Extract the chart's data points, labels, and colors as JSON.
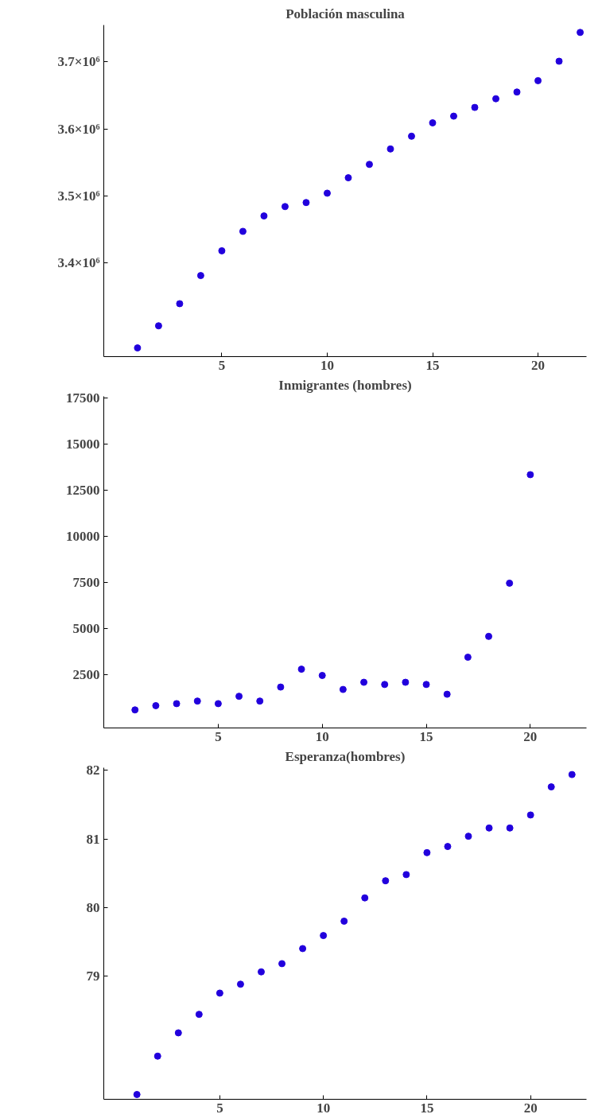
{
  "chart_data": [
    {
      "type": "scatter",
      "title": "Población masculina",
      "marker": "circle",
      "grid": false,
      "x": [
        1,
        2,
        3,
        4,
        5,
        6,
        7,
        8,
        9,
        10,
        11,
        12,
        13,
        14,
        15,
        16,
        17,
        18,
        19,
        20,
        21,
        22
      ],
      "series": [
        {
          "color": "#2200dd",
          "values": [
            3273000,
            3306000,
            3339000,
            3381000,
            3418000,
            3447000,
            3470000,
            3484000,
            3490000,
            3504000,
            3527000,
            3547000,
            3570000,
            3589000,
            3609000,
            3619000,
            3632000,
            3645000,
            3655000,
            3672000,
            3701000,
            3744000
          ]
        }
      ],
      "xlim": [
        -0.6,
        22.3
      ],
      "ylim": [
        3260000,
        3755000
      ],
      "xticks": [
        5,
        10,
        15,
        20
      ],
      "yticks": [
        {
          "value": 3400000,
          "label": "3.4×10⁶"
        },
        {
          "value": 3500000,
          "label": "3.5×10⁶"
        },
        {
          "value": 3600000,
          "label": "3.6×10⁶"
        },
        {
          "value": 3700000,
          "label": "3.7×10⁶"
        }
      ]
    },
    {
      "type": "scatter",
      "title": "Inmigrantes (hombres)",
      "marker": "circle",
      "grid": false,
      "x": [
        1,
        2,
        3,
        4,
        5,
        6,
        7,
        8,
        9,
        10,
        11,
        12,
        13,
        14,
        15,
        16,
        17,
        18,
        19,
        20
      ],
      "series": [
        {
          "color": "#2200dd",
          "values": [
            580,
            810,
            920,
            1060,
            920,
            1320,
            1060,
            1820,
            2790,
            2450,
            1690,
            2080,
            1960,
            2080,
            1960,
            1430,
            3440,
            4570,
            7460,
            13350
          ]
        }
      ],
      "xlim": [
        -0.5,
        22.7
      ],
      "ylim": [
        -400,
        17600
      ],
      "xticks": [
        5,
        10,
        15,
        20
      ],
      "yticks": [
        2500,
        5000,
        7500,
        10000,
        12500,
        15000,
        17500
      ]
    },
    {
      "type": "scatter",
      "title": "Esperanza(hombres)",
      "marker": "circle",
      "grid": false,
      "x": [
        1,
        2,
        3,
        4,
        5,
        6,
        7,
        8,
        9,
        10,
        11,
        12,
        13,
        14,
        15,
        16,
        17,
        18,
        19,
        20,
        21,
        22
      ],
      "series": [
        {
          "color": "#2200dd",
          "values": [
            77.27,
            77.83,
            78.17,
            78.44,
            78.75,
            78.88,
            79.06,
            79.18,
            79.4,
            79.59,
            79.8,
            80.14,
            80.39,
            80.48,
            80.8,
            80.89,
            81.04,
            81.16,
            81.16,
            81.35,
            81.76,
            81.94
          ]
        }
      ],
      "xlim": [
        -0.6,
        22.7
      ],
      "ylim": [
        77.2,
        82.04
      ],
      "xticks": [
        5,
        10,
        15,
        20
      ],
      "yticks": [
        79,
        80,
        81,
        82
      ]
    }
  ]
}
